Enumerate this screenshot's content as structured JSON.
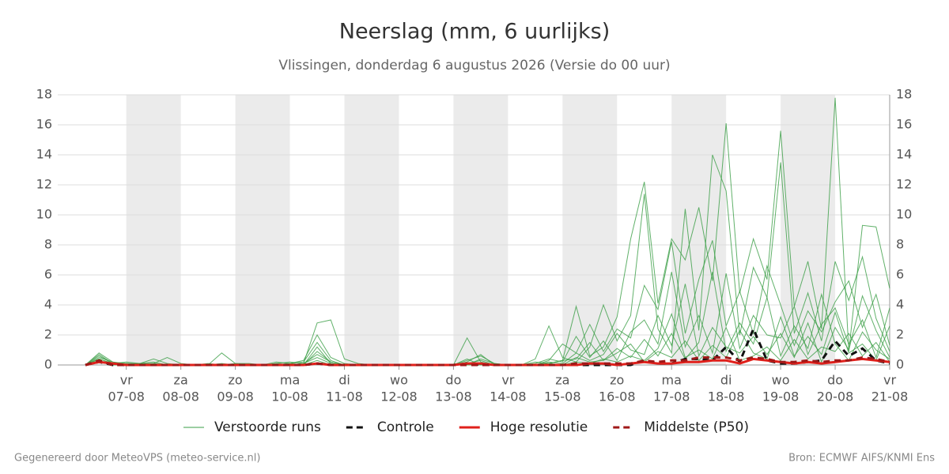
{
  "chart_data": {
    "type": "line",
    "title": "Neerslag (mm, 6 uurlijks)",
    "subtitle": "Vlissingen, donderdag  6 augustus 2026 (Versie do 00 uur)",
    "footer_left": "Gegenereerd door MeteoVPS (meteo-service.nl)",
    "footer_right": "Bron: ECMWF AIFS/KNMI Ens",
    "categories": [
      null,
      null,
      null,
      "07-08",
      null,
      null,
      null,
      "08-08",
      null,
      null,
      null,
      "09-08",
      null,
      null,
      null,
      "10-08",
      null,
      null,
      null,
      "11-08",
      null,
      null,
      null,
      "12-08",
      null,
      null,
      null,
      "13-08",
      null,
      null,
      null,
      "14-08",
      null,
      null,
      null,
      "15-08",
      null,
      null,
      null,
      "16-08",
      null,
      null,
      null,
      "17-08",
      null,
      null,
      null,
      "18-08",
      null,
      null,
      null,
      "19-08",
      null,
      null,
      null,
      "20-08",
      null,
      null,
      null,
      "21-08"
    ],
    "weekdays": [
      null,
      null,
      null,
      "vr",
      null,
      null,
      null,
      "za",
      null,
      null,
      null,
      "zo",
      null,
      null,
      null,
      "ma",
      null,
      null,
      null,
      "di",
      null,
      null,
      null,
      "wo",
      null,
      null,
      null,
      "do",
      null,
      null,
      null,
      "vr",
      null,
      null,
      null,
      "za",
      null,
      null,
      null,
      "zo",
      null,
      null,
      null,
      "ma",
      null,
      null,
      null,
      "di",
      null,
      null,
      null,
      "wo",
      null,
      null,
      null,
      "do",
      null,
      null,
      null,
      "vr"
    ],
    "ylim": [
      0,
      18
    ],
    "yticks": [
      0,
      2,
      4,
      6,
      8,
      10,
      12,
      14,
      16,
      18
    ],
    "grid": true,
    "ensemble": {
      "name": "Verstoorde runs",
      "color": "#3a9e45",
      "members": [
        [
          0,
          0.8,
          0.2,
          0.1,
          0.1,
          0.4,
          0.1,
          0,
          0,
          0,
          0.8,
          0.1,
          0,
          0,
          0.1,
          0.2,
          0.1,
          2.8,
          3.0,
          0.4,
          0.1,
          0,
          0,
          0,
          0,
          0,
          0,
          0,
          0.3,
          0.6,
          0.1,
          0,
          0,
          0.2,
          0.1,
          0.3,
          3.9,
          0.6,
          1.2,
          3.2,
          8.4,
          12.2,
          4.1,
          8.4,
          7.0,
          10.5,
          5.6,
          16.1,
          4.8,
          8.4,
          5.7,
          15.6,
          3.9,
          6.9,
          2.4,
          17.8,
          0.9,
          9.3,
          9.2,
          5.1
        ],
        [
          0,
          0.6,
          0.1,
          0.2,
          0.1,
          0.1,
          0.5,
          0.1,
          0,
          0,
          0,
          0,
          0,
          0,
          0,
          0.1,
          0.3,
          2.0,
          0.5,
          0.1,
          0,
          0,
          0,
          0,
          0,
          0,
          0,
          0,
          1.8,
          0.2,
          0,
          0,
          0,
          0.4,
          2.6,
          0.5,
          0.2,
          1.2,
          4.0,
          1.6,
          3.3,
          11.4,
          2.4,
          0.8,
          10.4,
          2.3,
          14.0,
          11.6,
          2.0,
          6.5,
          4.5,
          13.5,
          2.1,
          4.8,
          1.6,
          6.9,
          4.3,
          7.2,
          3.1,
          0.9
        ],
        [
          0,
          0.4,
          0.1,
          0.1,
          0,
          0,
          0,
          0,
          0,
          0.1,
          0,
          0.1,
          0.1,
          0,
          0.2,
          0.1,
          0.2,
          1.5,
          0.3,
          0,
          0,
          0,
          0,
          0,
          0,
          0,
          0,
          0,
          0.2,
          0.7,
          0,
          0,
          0,
          0,
          0.3,
          1.4,
          0.8,
          2.7,
          0.9,
          2.4,
          1.8,
          5.3,
          3.7,
          8.2,
          2.1,
          5.7,
          8.3,
          2.6,
          4.9,
          2.1,
          6.6,
          4.0,
          1.3,
          3.6,
          2.2,
          4.2,
          5.6,
          2.5,
          4.7,
          1.3
        ],
        [
          0,
          0.5,
          0.2,
          0,
          0.1,
          0.2,
          0,
          0,
          0,
          0,
          0.1,
          0,
          0,
          0,
          0.1,
          0,
          0.1,
          0.7,
          0.2,
          0,
          0,
          0,
          0,
          0,
          0,
          0,
          0,
          0,
          0,
          0.4,
          0.1,
          0,
          0,
          0.1,
          0.4,
          0.2,
          1.9,
          0.5,
          1.6,
          0.3,
          2.2,
          3.0,
          1.4,
          6.2,
          1.2,
          3.3,
          0.8,
          6.1,
          1.1,
          3.3,
          2.0,
          1.8,
          3.9,
          0.7,
          2.7,
          3.8,
          1.4,
          3.0,
          0.5,
          3.8
        ],
        [
          0,
          0.3,
          0,
          0.1,
          0,
          0,
          0,
          0,
          0,
          0,
          0,
          0,
          0,
          0,
          0,
          0,
          0.1,
          0.5,
          0.1,
          0,
          0,
          0,
          0,
          0,
          0,
          0,
          0,
          0,
          0.1,
          0.1,
          0,
          0,
          0,
          0,
          0.1,
          0.3,
          0.4,
          1.5,
          0.3,
          1.1,
          0.5,
          1.7,
          0.6,
          2.1,
          0.4,
          1.5,
          6.2,
          0.9,
          2.8,
          1.4,
          4.5,
          0.6,
          2.6,
          1.1,
          4.7,
          1.4,
          0.3,
          2.2,
          1.0,
          0.4
        ],
        [
          0,
          0.7,
          0.1,
          0,
          0,
          0,
          0,
          0,
          0,
          0,
          0,
          0,
          0,
          0,
          0,
          0.1,
          0,
          1.2,
          0.1,
          0,
          0,
          0,
          0,
          0,
          0,
          0,
          0,
          0,
          0.4,
          0,
          0,
          0,
          0,
          0,
          0.2,
          0.1,
          0.8,
          0.3,
          0.7,
          2.1,
          1.0,
          0.7,
          3.3,
          1.3,
          5.4,
          0.6,
          2.5,
          1.2,
          0.8,
          1.9,
          0.7,
          2.1,
          0.5,
          2.8,
          0.2,
          2.5,
          1.0,
          4.6,
          2.3,
          0.5
        ],
        [
          0,
          0.2,
          0,
          0,
          0,
          0,
          0,
          0,
          0,
          0,
          0,
          0,
          0,
          0,
          0,
          0,
          0,
          0.3,
          0,
          0,
          0,
          0,
          0,
          0,
          0,
          0,
          0,
          0,
          0,
          0,
          0,
          0,
          0,
          0,
          0,
          0,
          0.2,
          0.1,
          0.4,
          0.2,
          0.6,
          0.3,
          1.1,
          3.4,
          0.5,
          1.0,
          0.4,
          2.5,
          0.3,
          0.6,
          1.2,
          0.3,
          1.7,
          0.4,
          1.2,
          0.9,
          2.1,
          0.6,
          1.5,
          0.2
        ],
        [
          0,
          0.4,
          0.1,
          0.1,
          0,
          0.1,
          0,
          0,
          0,
          0,
          0,
          0,
          0,
          0,
          0,
          0,
          0,
          0.9,
          0.2,
          0,
          0,
          0,
          0,
          0,
          0,
          0,
          0,
          0,
          0.1,
          0.3,
          0,
          0,
          0,
          0,
          0.1,
          0,
          0.5,
          0.2,
          0.3,
          0.8,
          1.4,
          0.2,
          0.9,
          0.5,
          1.6,
          0.3,
          1.3,
          0.5,
          2.3,
          0.8,
          0.4,
          3.2,
          0.6,
          1.9,
          0.7,
          3.5,
          0.8,
          1.4,
          0.3,
          2.6
        ]
      ]
    },
    "series": [
      {
        "name": "Controle",
        "color": "#111111",
        "dash": true,
        "values": [
          0,
          0.2,
          0,
          0,
          0,
          0,
          0,
          0,
          0,
          0,
          0,
          0,
          0,
          0,
          0,
          0,
          0,
          0.1,
          0,
          0,
          0,
          0,
          0,
          0,
          0,
          0,
          0,
          0,
          0.1,
          0,
          0,
          0,
          0,
          0,
          0,
          0,
          0,
          0,
          0,
          0,
          0,
          0.3,
          0.1,
          0.1,
          0.4,
          0.4,
          0.3,
          1.2,
          0.2,
          2.4,
          0.3,
          0.1,
          0.1,
          0.2,
          0.3,
          1.6,
          0.6,
          1.1,
          0.3,
          0.1
        ]
      },
      {
        "name": "Hoge resolutie",
        "color": "#e0201b",
        "dash": false,
        "values": [
          0,
          0.2,
          0.1,
          0,
          0,
          0,
          0,
          0,
          0,
          0,
          0,
          0,
          0,
          0,
          0,
          0,
          0,
          0.1,
          0,
          0,
          0,
          0,
          0,
          0,
          0,
          0,
          0,
          0,
          0.1,
          0.1,
          0,
          0,
          0,
          0,
          0,
          0,
          0,
          0.1,
          0.1,
          0,
          0.1,
          0.2,
          0.1,
          0.1,
          0.2,
          0.2,
          0.3,
          0.3,
          0.1,
          0.4,
          0.3,
          0.2,
          0.1,
          0.2,
          0.1,
          0.2,
          0.3,
          0.4,
          0.3,
          0.2
        ]
      },
      {
        "name": "Middelste (P50)",
        "color": "#a01818",
        "dash": true,
        "values": [
          0,
          0.3,
          0,
          0,
          0,
          0,
          0,
          0,
          0,
          0,
          0,
          0,
          0,
          0,
          0,
          0,
          0,
          0.1,
          0,
          0,
          0,
          0,
          0,
          0,
          0,
          0,
          0,
          0,
          0,
          0,
          0,
          0,
          0,
          0,
          0,
          0,
          0.1,
          0.1,
          0.1,
          0.1,
          0.1,
          0.3,
          0.2,
          0.3,
          0.3,
          0.5,
          0.5,
          0.5,
          0.3,
          0.5,
          0.4,
          0.2,
          0.2,
          0.3,
          0.2,
          0.3,
          0.3,
          0.5,
          0.4,
          0.2
        ]
      }
    ]
  }
}
